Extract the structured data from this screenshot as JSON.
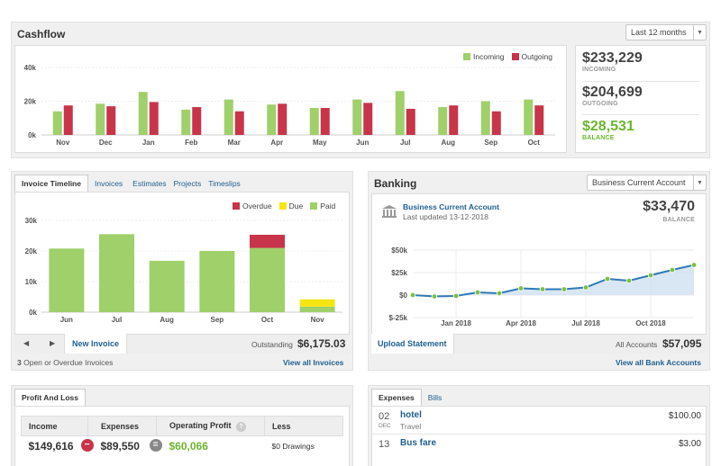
{
  "cashflow": {
    "title": "Cashflow",
    "period": "Last 12 months",
    "legend": [
      "Incoming",
      "Outgoing"
    ],
    "colors": {
      "incoming": "#9fd06a",
      "outgoing": "#c8344a"
    },
    "summary": [
      {
        "value": "$233,229",
        "label": "INCOMING"
      },
      {
        "value": "$204,699",
        "label": "OUTGOING"
      },
      {
        "value": "$28,531",
        "label": "BALANCE"
      }
    ]
  },
  "invoice": {
    "tabs": [
      "Invoice Timeline",
      "Invoices",
      "Estimates",
      "Projects",
      "Timeslips"
    ],
    "legend": [
      "Overdue",
      "Due",
      "Paid"
    ],
    "colors": {
      "overdue": "#c8344a",
      "due": "#f5e611",
      "paid": "#9fd06a"
    },
    "new_invoice": "New Invoice",
    "outstanding_label": "Outstanding",
    "outstanding_value": "$6,175.03",
    "open_count": "3",
    "open_label": "Open or Overdue Invoices",
    "view_all": "View all Invoices"
  },
  "banking": {
    "title": "Banking",
    "account_select": "Business Current Account",
    "account_name": "Business Current Account",
    "updated": "Last updated 13-12-2018",
    "balance": "$33,470",
    "balance_label": "BALANCE",
    "upload": "Upload Statement",
    "all_accounts_label": "All Accounts",
    "all_accounts_value": "$57,095",
    "view_all": "View all Bank Accounts",
    "bank_icon": "bank-icon"
  },
  "profit": {
    "tab": "Profit And Loss",
    "headers": [
      "Income",
      "Expenses",
      "Operating Profit",
      "Less"
    ],
    "help": "?",
    "income": "$149,616",
    "expenses": "$89,550",
    "operating_profit": "$60,066",
    "less": "$0 Drawings",
    "op_minus": "−",
    "op_equals": "="
  },
  "expenses": {
    "tabs": [
      "Expenses",
      "Bills"
    ],
    "items": [
      {
        "day": "02",
        "month": "DEC",
        "name": "hotel",
        "category": "Travel",
        "amount": "$100.00"
      },
      {
        "day": "13",
        "month": "",
        "name": "Bus fare",
        "category": "",
        "amount": "$3.00"
      }
    ]
  },
  "chart_data": [
    {
      "type": "bar",
      "categories": [
        "Nov",
        "Dec",
        "Jan",
        "Feb",
        "Mar",
        "Apr",
        "May",
        "Jun",
        "Jul",
        "Aug",
        "Sep",
        "Oct"
      ],
      "series": [
        {
          "name": "Incoming",
          "values": [
            14000,
            18500,
            25500,
            15000,
            21000,
            18000,
            16000,
            21000,
            26000,
            16500,
            20000,
            21000
          ]
        },
        {
          "name": "Outgoing",
          "values": [
            17500,
            17000,
            19500,
            16500,
            14000,
            18500,
            16000,
            19000,
            15500,
            17500,
            14000,
            17500
          ]
        }
      ],
      "yticks": [
        "0k",
        "20k",
        "40k"
      ],
      "ylim": [
        0,
        40000
      ],
      "legend": "top-right"
    },
    {
      "type": "bar",
      "stacked": true,
      "categories": [
        "Jun",
        "Jul",
        "Aug",
        "Sep",
        "Oct",
        "Nov"
      ],
      "series": [
        {
          "name": "Paid",
          "values": [
            20800,
            25500,
            16800,
            20000,
            21000,
            1800
          ]
        },
        {
          "name": "Due",
          "values": [
            0,
            0,
            0,
            0,
            0,
            2400
          ]
        },
        {
          "name": "Overdue",
          "values": [
            0,
            0,
            0,
            0,
            4300,
            0
          ]
        }
      ],
      "yticks": [
        "0k",
        "10k",
        "20k",
        "30k"
      ],
      "ylim": [
        0,
        30000
      ],
      "legend": "top-right"
    },
    {
      "type": "area",
      "x": [
        "Nov 2017",
        "Dec 2017",
        "Jan 2018",
        "Feb 2018",
        "Mar 2018",
        "Apr 2018",
        "May 2018",
        "Jun 2018",
        "Jul 2018",
        "Aug 2018",
        "Sep 2018",
        "Oct 2018",
        "Nov 2018",
        "Dec 2018"
      ],
      "values": [
        0,
        -1500,
        -1000,
        3000,
        2000,
        7500,
        6500,
        6500,
        8500,
        18000,
        16000,
        22000,
        28000,
        33470
      ],
      "xticks": [
        "Jan 2018",
        "Apr 2018",
        "Jul 2018",
        "Oct 2018"
      ],
      "yticks": [
        "$-25k",
        "$0",
        "$25k",
        "$50k"
      ],
      "ylim": [
        -25000,
        50000
      ]
    }
  ]
}
